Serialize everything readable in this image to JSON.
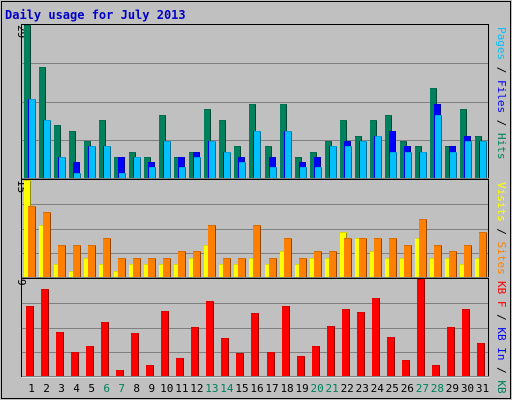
{
  "title": "Daily usage for July 2013",
  "colors": {
    "background": "#c0c0c0",
    "title": "#0000cc",
    "hits": "#00805c",
    "files": "#0000ff",
    "pages": "#00c0ff",
    "visits": "#ffff00",
    "sites": "#ff8000",
    "kb_in": "#0000ff",
    "kb_out": "#00805c",
    "kb_f": "#ff0000",
    "weekend": "#00805c",
    "weekday": "#000000"
  },
  "chart_data": [
    {
      "type": "bar",
      "title": "Daily usage for July 2013",
      "categories": [
        "1",
        "2",
        "3",
        "4",
        "5",
        "6",
        "7",
        "8",
        "9",
        "10",
        "11",
        "12",
        "13",
        "14",
        "15",
        "16",
        "17",
        "18",
        "19",
        "20",
        "21",
        "22",
        "23",
        "24",
        "25",
        "26",
        "27",
        "28",
        "29",
        "30",
        "31"
      ],
      "weekend_days": [
        "6",
        "7",
        "13",
        "14",
        "20",
        "21",
        "27",
        "28"
      ],
      "ymax_label": "29",
      "ylim": [
        0,
        29
      ],
      "right_label": [
        "Pages",
        " / ",
        "Files",
        " / ",
        "Hits"
      ],
      "series": [
        {
          "name": "Hits",
          "values": [
            29,
            21,
            10,
            9,
            7,
            11,
            4,
            5,
            4,
            12,
            4,
            5,
            13,
            11,
            6,
            14,
            6,
            14,
            4,
            5,
            7,
            11,
            8,
            11,
            12,
            7,
            6,
            17,
            6,
            13,
            8
          ]
        },
        {
          "name": "Files",
          "values": [
            15,
            11,
            4,
            3,
            6,
            6,
            4,
            4,
            3,
            7,
            4,
            5,
            7,
            5,
            4,
            9,
            4,
            9,
            3,
            4,
            6,
            7,
            7,
            8,
            9,
            6,
            5,
            14,
            6,
            8,
            7
          ]
        },
        {
          "name": "Pages",
          "values": [
            15,
            11,
            4,
            1,
            6,
            6,
            1,
            4,
            2,
            7,
            2,
            4,
            7,
            5,
            3,
            9,
            2,
            9,
            2,
            2,
            6,
            6,
            7,
            8,
            5,
            5,
            5,
            12,
            5,
            7,
            7
          ]
        }
      ]
    },
    {
      "type": "bar",
      "ymax_label": "15",
      "ylim": [
        0,
        15
      ],
      "right_label": [
        "Visits",
        " / ",
        "Sites"
      ],
      "series": [
        {
          "name": "Visits",
          "values": [
            15,
            8,
            2,
            1,
            3,
            2,
            1,
            2,
            2,
            2,
            2,
            3,
            5,
            2,
            2,
            3,
            2,
            4,
            2,
            3,
            3,
            7,
            6,
            4,
            3,
            3,
            6,
            3,
            3,
            2,
            3
          ]
        },
        {
          "name": "Sites",
          "values": [
            11,
            10,
            5,
            5,
            5,
            6,
            3,
            3,
            3,
            3,
            4,
            4,
            8,
            3,
            3,
            8,
            3,
            6,
            3,
            4,
            4,
            6,
            6,
            6,
            6,
            5,
            9,
            5,
            4,
            5,
            7
          ]
        }
      ]
    },
    {
      "type": "bar",
      "ymax_label": "9",
      "ylim": [
        0,
        9
      ],
      "right_label": [
        "KB F",
        " / ",
        "KB In",
        " / ",
        "KB Out"
      ],
      "series": [
        {
          "name": "KB F",
          "values": [
            6.5,
            8.1,
            4.1,
            2.2,
            2.8,
            5.0,
            0.6,
            4.0,
            1.0,
            6.0,
            1.7,
            4.5,
            7.0,
            3.5,
            2.1,
            5.8,
            2.2,
            6.5,
            1.9,
            2.8,
            4.6,
            6.2,
            5.9,
            7.2,
            3.6,
            1.5,
            9.0,
            1.0,
            4.5,
            6.2,
            3.1
          ]
        }
      ]
    }
  ]
}
